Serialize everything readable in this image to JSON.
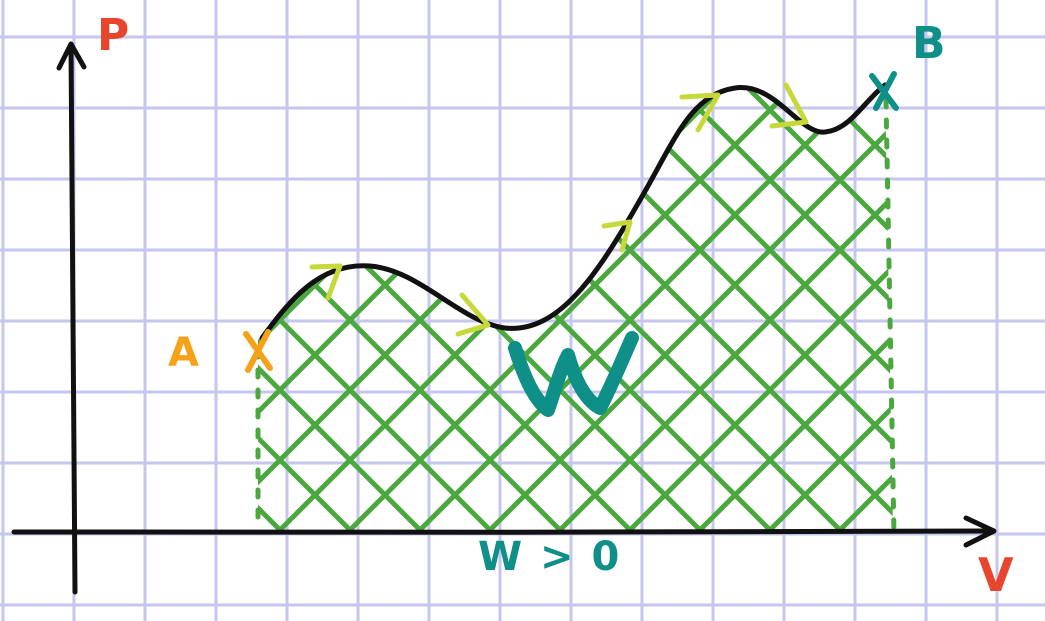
{
  "labels": {
    "y_axis": "P",
    "x_axis": "V",
    "point_a": "A",
    "point_b": "B",
    "area": "W",
    "condition": "W > 0"
  },
  "colors": {
    "grid": "#c6c6ee",
    "axis": "#111111",
    "curve": "#111111",
    "hatch": "#4aa83e",
    "arrow": "#c7d93a",
    "orange": "#f5a21b",
    "teal": "#0e8f87",
    "red": "#e8452f"
  }
}
